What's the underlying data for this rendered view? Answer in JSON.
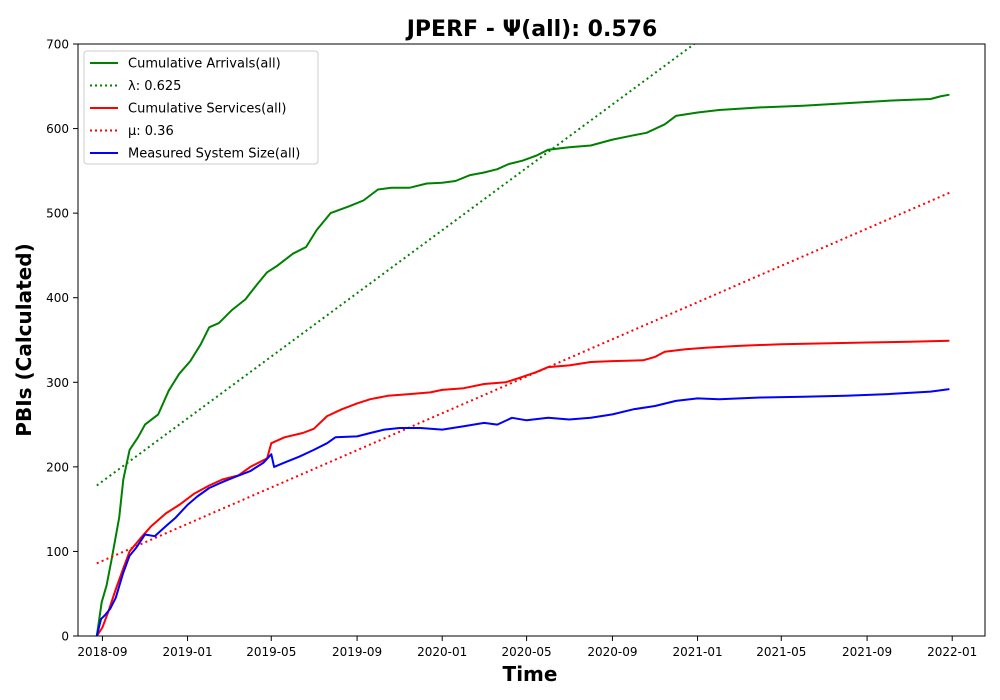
{
  "chart_data": {
    "type": "line",
    "title": "JPERF -  Ψ(all): 0.576",
    "xlabel": "Time",
    "ylabel": "PBIs (Calculated)",
    "xlim": [
      "2018-07-28",
      "2022-02-17"
    ],
    "ylim": [
      0,
      700
    ],
    "x_ticks": [
      "2018-09",
      "2019-01",
      "2019-05",
      "2019-09",
      "2020-01",
      "2020-05",
      "2020-09",
      "2021-01",
      "2021-05",
      "2021-09",
      "2022-01"
    ],
    "y_ticks": [
      0,
      100,
      200,
      300,
      400,
      500,
      600,
      700
    ],
    "grid": false,
    "legend_position": "top-left",
    "series": [
      {
        "name": "Cumulative Arrivals(all)",
        "color": "#008000",
        "style": "solid",
        "points": [
          [
            "2018-08-24",
            0
          ],
          [
            "2018-08-31",
            40
          ],
          [
            "2018-09-07",
            60
          ],
          [
            "2018-09-14",
            90
          ],
          [
            "2018-09-25",
            140
          ],
          [
            "2018-10-01",
            185
          ],
          [
            "2018-10-10",
            220
          ],
          [
            "2018-10-22",
            235
          ],
          [
            "2018-11-01",
            250
          ],
          [
            "2018-11-20",
            262
          ],
          [
            "2018-12-05",
            290
          ],
          [
            "2018-12-20",
            310
          ],
          [
            "2019-01-05",
            325
          ],
          [
            "2019-01-20",
            345
          ],
          [
            "2019-02-01",
            365
          ],
          [
            "2019-02-15",
            370
          ],
          [
            "2019-03-05",
            385
          ],
          [
            "2019-03-25",
            398
          ],
          [
            "2019-04-10",
            415
          ],
          [
            "2019-04-25",
            430
          ],
          [
            "2019-05-10",
            438
          ],
          [
            "2019-06-01",
            452
          ],
          [
            "2019-06-20",
            460
          ],
          [
            "2019-07-05",
            480
          ],
          [
            "2019-07-25",
            500
          ],
          [
            "2019-08-20",
            508
          ],
          [
            "2019-09-10",
            515
          ],
          [
            "2019-10-01",
            528
          ],
          [
            "2019-10-20",
            530
          ],
          [
            "2019-11-15",
            530
          ],
          [
            "2019-12-10",
            535
          ],
          [
            "2020-01-01",
            536
          ],
          [
            "2020-01-20",
            538
          ],
          [
            "2020-02-10",
            545
          ],
          [
            "2020-03-01",
            548
          ],
          [
            "2020-03-20",
            552
          ],
          [
            "2020-04-05",
            558
          ],
          [
            "2020-04-25",
            562
          ],
          [
            "2020-05-15",
            568
          ],
          [
            "2020-06-01",
            575
          ],
          [
            "2020-07-01",
            578
          ],
          [
            "2020-08-01",
            580
          ],
          [
            "2020-09-01",
            587
          ],
          [
            "2020-10-01",
            592
          ],
          [
            "2020-10-20",
            595
          ],
          [
            "2020-11-15",
            605
          ],
          [
            "2020-12-01",
            615
          ],
          [
            "2021-01-01",
            619
          ],
          [
            "2021-02-01",
            622
          ],
          [
            "2021-04-01",
            625
          ],
          [
            "2021-06-01",
            627
          ],
          [
            "2021-08-01",
            630
          ],
          [
            "2021-10-01",
            633
          ],
          [
            "2021-12-01",
            635
          ],
          [
            "2021-12-15",
            638
          ],
          [
            "2021-12-28",
            640
          ]
        ]
      },
      {
        "name": "λ: 0.625",
        "color": "#008000",
        "style": "dotted",
        "points": [
          [
            "2018-08-24",
            178
          ],
          [
            "2021-01-01",
            703
          ]
        ]
      },
      {
        "name": "Cumulative Services(all)",
        "color": "#ff0000",
        "style": "solid",
        "points": [
          [
            "2018-08-24",
            0
          ],
          [
            "2018-09-01",
            10
          ],
          [
            "2018-09-10",
            30
          ],
          [
            "2018-09-20",
            55
          ],
          [
            "2018-10-01",
            80
          ],
          [
            "2018-10-10",
            100
          ],
          [
            "2018-10-25",
            115
          ],
          [
            "2018-11-10",
            130
          ],
          [
            "2018-12-01",
            145
          ],
          [
            "2018-12-20",
            155
          ],
          [
            "2019-01-10",
            168
          ],
          [
            "2019-02-01",
            178
          ],
          [
            "2019-02-20",
            185
          ],
          [
            "2019-03-15",
            190
          ],
          [
            "2019-04-01",
            200
          ],
          [
            "2019-04-25",
            210
          ],
          [
            "2019-05-01",
            228
          ],
          [
            "2019-05-20",
            235
          ],
          [
            "2019-06-15",
            240
          ],
          [
            "2019-07-01",
            245
          ],
          [
            "2019-07-20",
            260
          ],
          [
            "2019-08-10",
            268
          ],
          [
            "2019-09-01",
            275
          ],
          [
            "2019-09-20",
            280
          ],
          [
            "2019-10-15",
            284
          ],
          [
            "2019-11-15",
            286
          ],
          [
            "2019-12-15",
            288
          ],
          [
            "2020-01-01",
            291
          ],
          [
            "2020-02-01",
            293
          ],
          [
            "2020-03-01",
            298
          ],
          [
            "2020-04-01",
            300
          ],
          [
            "2020-04-20",
            305
          ],
          [
            "2020-05-15",
            312
          ],
          [
            "2020-06-01",
            318
          ],
          [
            "2020-07-01",
            320
          ],
          [
            "2020-08-01",
            324
          ],
          [
            "2020-09-01",
            325
          ],
          [
            "2020-10-15",
            326
          ],
          [
            "2020-11-01",
            330
          ],
          [
            "2020-11-15",
            336
          ],
          [
            "2020-12-15",
            339
          ],
          [
            "2021-01-15",
            341
          ],
          [
            "2021-03-01",
            343
          ],
          [
            "2021-05-01",
            345
          ],
          [
            "2021-07-01",
            346
          ],
          [
            "2021-09-01",
            347
          ],
          [
            "2021-11-01",
            348
          ],
          [
            "2021-12-28",
            349
          ]
        ]
      },
      {
        "name": "μ: 0.36",
        "color": "#ff0000",
        "style": "dotted",
        "points": [
          [
            "2018-08-24",
            86
          ],
          [
            "2021-12-28",
            524
          ]
        ]
      },
      {
        "name": "Measured System Size(all)",
        "color": "#0000ff",
        "style": "solid",
        "points": [
          [
            "2018-08-24",
            0
          ],
          [
            "2018-08-30",
            20
          ],
          [
            "2018-09-05",
            25
          ],
          [
            "2018-09-12",
            32
          ],
          [
            "2018-09-20",
            45
          ],
          [
            "2018-10-01",
            75
          ],
          [
            "2018-10-10",
            95
          ],
          [
            "2018-10-20",
            105
          ],
          [
            "2018-11-01",
            120
          ],
          [
            "2018-11-15",
            118
          ],
          [
            "2018-12-01",
            130
          ],
          [
            "2018-12-15",
            140
          ],
          [
            "2019-01-01",
            155
          ],
          [
            "2019-01-15",
            165
          ],
          [
            "2019-02-01",
            175
          ],
          [
            "2019-02-20",
            182
          ],
          [
            "2019-03-10",
            188
          ],
          [
            "2019-04-01",
            195
          ],
          [
            "2019-04-20",
            205
          ],
          [
            "2019-05-01",
            215
          ],
          [
            "2019-05-05",
            200
          ],
          [
            "2019-05-20",
            205
          ],
          [
            "2019-06-10",
            212
          ],
          [
            "2019-07-01",
            220
          ],
          [
            "2019-07-20",
            228
          ],
          [
            "2019-08-01",
            235
          ],
          [
            "2019-09-01",
            236
          ],
          [
            "2019-09-20",
            240
          ],
          [
            "2019-10-10",
            244
          ],
          [
            "2019-11-01",
            246
          ],
          [
            "2019-12-01",
            246
          ],
          [
            "2020-01-01",
            244
          ],
          [
            "2020-02-01",
            248
          ],
          [
            "2020-03-01",
            252
          ],
          [
            "2020-03-20",
            250
          ],
          [
            "2020-04-10",
            258
          ],
          [
            "2020-05-01",
            255
          ],
          [
            "2020-06-01",
            258
          ],
          [
            "2020-07-01",
            256
          ],
          [
            "2020-08-01",
            258
          ],
          [
            "2020-09-01",
            262
          ],
          [
            "2020-10-01",
            268
          ],
          [
            "2020-11-01",
            272
          ],
          [
            "2020-12-01",
            278
          ],
          [
            "2021-01-01",
            281
          ],
          [
            "2021-02-01",
            280
          ],
          [
            "2021-04-01",
            282
          ],
          [
            "2021-06-01",
            283
          ],
          [
            "2021-08-01",
            284
          ],
          [
            "2021-10-01",
            286
          ],
          [
            "2021-12-01",
            289
          ],
          [
            "2021-12-28",
            292
          ]
        ]
      }
    ]
  }
}
